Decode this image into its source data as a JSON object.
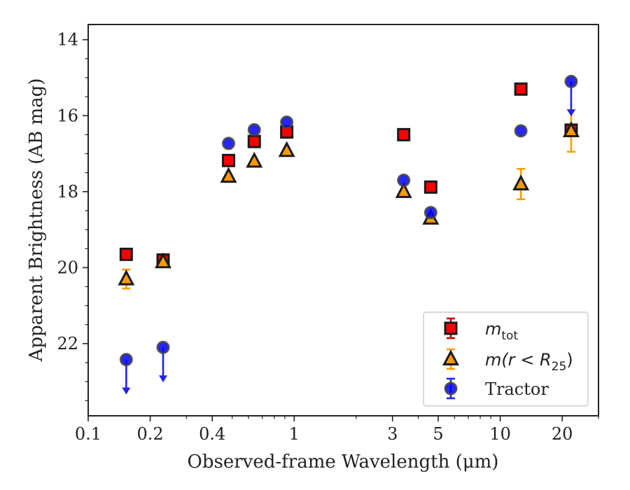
{
  "chart_data": {
    "type": "scatter",
    "xscale": "log",
    "yaxis_inverted": true,
    "xlabel": "Observed-frame Wavelength (μm)",
    "ylabel": "Apparent Brightness (AB mag)",
    "xlim": [
      0.1,
      30
    ],
    "ylim": [
      23.9,
      13.6
    ],
    "x_ticks": [
      {
        "value": 0.1,
        "label": "0.1"
      },
      {
        "value": 0.2,
        "label": "0.2"
      },
      {
        "value": 0.4,
        "label": "0.4"
      },
      {
        "value": 1,
        "label": "1"
      },
      {
        "value": 3,
        "label": "3"
      },
      {
        "value": 5,
        "label": "5"
      },
      {
        "value": 10,
        "label": "10"
      },
      {
        "value": 20,
        "label": "20"
      }
    ],
    "y_ticks": [
      {
        "value": 14,
        "label": "14"
      },
      {
        "value": 16,
        "label": "16"
      },
      {
        "value": 18,
        "label": "18"
      },
      {
        "value": 20,
        "label": "20"
      },
      {
        "value": 22,
        "label": "22"
      }
    ],
    "grid": false,
    "legend_position": "bottom-right",
    "series": [
      {
        "name": "m_tot",
        "legend_label": "m",
        "legend_sub": "tot",
        "marker": "square",
        "color": "#ff0000",
        "edge": "#1a1a1a",
        "error_color": "#cc0000",
        "points": [
          {
            "x": 0.153,
            "y": 19.65,
            "err": 0.0
          },
          {
            "x": 0.231,
            "y": 19.8,
            "err": 0.0
          },
          {
            "x": 0.48,
            "y": 17.18,
            "err": 0.0
          },
          {
            "x": 0.64,
            "y": 16.68,
            "err": 0.0
          },
          {
            "x": 0.92,
            "y": 16.43,
            "err": 0.0
          },
          {
            "x": 3.4,
            "y": 16.5,
            "err": 0.0
          },
          {
            "x": 4.6,
            "y": 17.88,
            "err": 0.0
          },
          {
            "x": 12.6,
            "y": 15.3,
            "err": 0.0
          },
          {
            "x": 22.1,
            "y": 16.38,
            "err": 0.12
          }
        ]
      },
      {
        "name": "m(r<R25)",
        "legend_label": "m(r < R",
        "legend_sub": "25",
        "legend_suffix": ")",
        "marker": "triangle",
        "color": "#ff9900",
        "edge": "#1a1a1a",
        "error_color": "#f5a000",
        "points": [
          {
            "x": 0.153,
            "y": 20.3,
            "err": 0.25
          },
          {
            "x": 0.231,
            "y": 19.85,
            "err": 0.0
          },
          {
            "x": 0.48,
            "y": 17.6,
            "err": 0.0
          },
          {
            "x": 0.64,
            "y": 17.2,
            "err": 0.0
          },
          {
            "x": 0.92,
            "y": 16.92,
            "err": 0.0
          },
          {
            "x": 3.4,
            "y": 18.0,
            "err": 0.0
          },
          {
            "x": 4.6,
            "y": 18.7,
            "err": 0.0
          },
          {
            "x": 12.6,
            "y": 17.8,
            "err": 0.4
          },
          {
            "x": 22.1,
            "y": 16.4,
            "err": 0.55
          }
        ]
      },
      {
        "name": "Tractor",
        "legend_label": "Tractor",
        "marker": "circle",
        "color": "#0000ff",
        "edge": "#444444",
        "error_color": "#2222ee",
        "points": [
          {
            "x": 0.153,
            "y": 22.42,
            "upper_limit": true
          },
          {
            "x": 0.231,
            "y": 22.1,
            "upper_limit": true
          },
          {
            "x": 0.48,
            "y": 16.73,
            "err": 0.0
          },
          {
            "x": 0.64,
            "y": 16.37,
            "err": 0.0
          },
          {
            "x": 0.92,
            "y": 16.17,
            "err": 0.0
          },
          {
            "x": 3.4,
            "y": 17.7,
            "err": 0.0
          },
          {
            "x": 4.6,
            "y": 18.55,
            "err": 0.0
          },
          {
            "x": 12.6,
            "y": 16.4,
            "err": 0.0
          },
          {
            "x": 22.1,
            "y": 15.1,
            "upper_limit": true
          }
        ]
      }
    ]
  }
}
